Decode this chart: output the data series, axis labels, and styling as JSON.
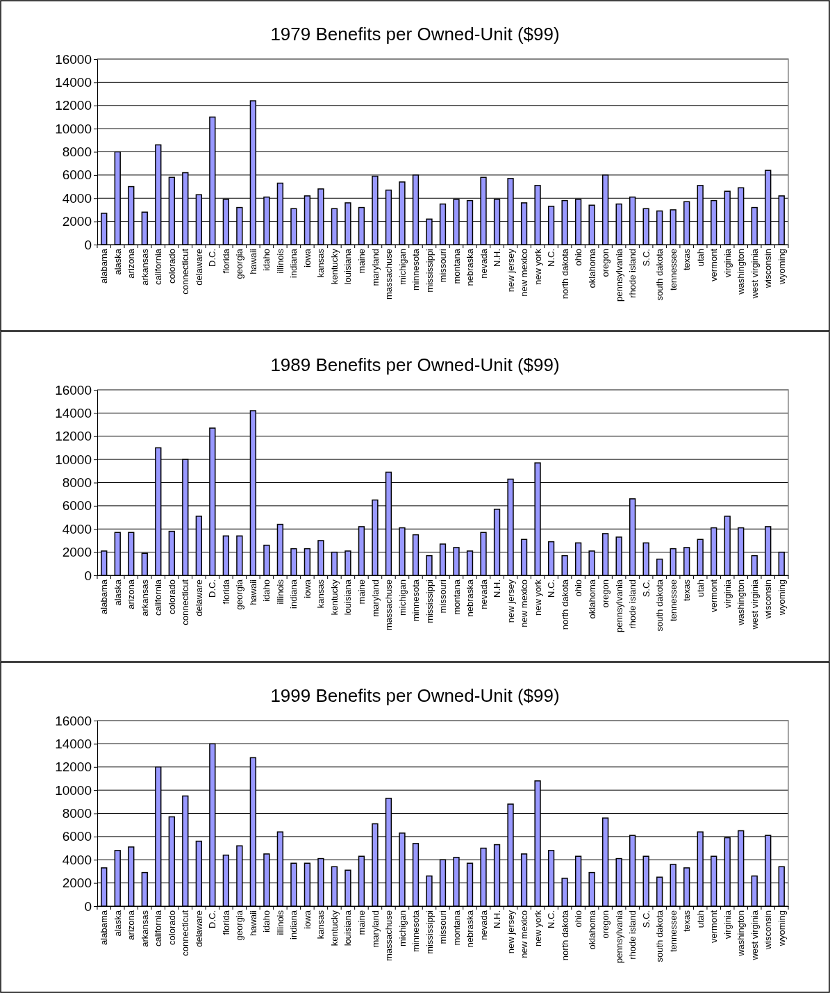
{
  "chart_data": [
    {
      "type": "bar",
      "title": "1979 Benefits per Owned-Unit ($99)",
      "categories": [
        "alabama",
        "alaska",
        "arizona",
        "arkansas",
        "california",
        "colorado",
        "connecticut",
        "delaware",
        "D.C.",
        "florida",
        "georgia",
        "hawaii",
        "idaho",
        "illinois",
        "indiana",
        "iowa",
        "kansas",
        "kentucky",
        "louisiana",
        "maine",
        "maryland",
        "massachuse",
        "michigan",
        "minnesota",
        "mississippi",
        "missouri",
        "montana",
        "nebraska",
        "nevada",
        "N.H.",
        "new jersey",
        "new mexico",
        "new york",
        "N.C.",
        "north dakota",
        "ohio",
        "oklahoma",
        "oregon",
        "pennsylvania",
        "rhode island",
        "S.C.",
        "south dakota",
        "tennessee",
        "texas",
        "utah",
        "vermont",
        "virginia",
        "washington",
        "west virginia",
        "wisconsin",
        "wyoming"
      ],
      "values": [
        2700,
        8000,
        5000,
        2800,
        8600,
        5800,
        6200,
        4300,
        11000,
        3900,
        3200,
        12400,
        4100,
        5300,
        3100,
        4200,
        4800,
        3100,
        3600,
        3200,
        5900,
        4700,
        5400,
        6000,
        2200,
        3500,
        3900,
        3800,
        5800,
        3900,
        5700,
        3600,
        5100,
        3300,
        3800,
        3900,
        3400,
        6000,
        3500,
        4100,
        3100,
        2900,
        3000,
        3700,
        5100,
        3800,
        4600,
        4900,
        3200,
        6400,
        4200
      ],
      "color": "#9999ff",
      "ylim": [
        0,
        16000
      ],
      "yticks": [
        0,
        2000,
        4000,
        6000,
        8000,
        10000,
        12000,
        14000,
        16000
      ],
      "grid": "y"
    },
    {
      "type": "bar",
      "title": "1989 Benefits per Owned-Unit ($99)",
      "categories": [
        "alabama",
        "alaska",
        "arizona",
        "arkansas",
        "california",
        "colorado",
        "connecticut",
        "delaware",
        "D.C.",
        "florida",
        "georgia",
        "hawaii",
        "idaho",
        "illinois",
        "indiana",
        "iowa",
        "kansas",
        "kentucky",
        "louisiana",
        "maine",
        "maryland",
        "massachuse",
        "michigan",
        "minnesota",
        "mississippi",
        "missouri",
        "montana",
        "nebraska",
        "nevada",
        "N.H.",
        "new jersey",
        "new mexico",
        "new york",
        "N.C.",
        "north dakota",
        "ohio",
        "oklahoma",
        "oregon",
        "pennsylvania",
        "rhode island",
        "S.C.",
        "south dakota",
        "tennessee",
        "texas",
        "utah",
        "vermont",
        "virginia",
        "washington",
        "west virginia",
        "wisconsin",
        "wyoming"
      ],
      "values": [
        2100,
        3700,
        3700,
        1900,
        11000,
        3800,
        10000,
        5100,
        12700,
        3400,
        3400,
        14200,
        2600,
        4400,
        2300,
        2300,
        3000,
        2000,
        2100,
        4200,
        6500,
        8900,
        4100,
        3500,
        1700,
        2700,
        2400,
        2100,
        3700,
        5700,
        8300,
        3100,
        9700,
        2900,
        1700,
        2800,
        2100,
        3600,
        3300,
        6600,
        2800,
        1400,
        2300,
        2400,
        3100,
        4100,
        5100,
        4100,
        1700,
        4200,
        2000
      ],
      "color": "#9999ff",
      "ylim": [
        0,
        16000
      ],
      "yticks": [
        0,
        2000,
        4000,
        6000,
        8000,
        10000,
        12000,
        14000,
        16000
      ],
      "grid": "y"
    },
    {
      "type": "bar",
      "title": "1999 Benefits per Owned-Unit ($99)",
      "categories": [
        "alabama",
        "alaska",
        "arizona",
        "arkansas",
        "california",
        "colorado",
        "connecticut",
        "delaware",
        "D.C.",
        "florida",
        "georgia",
        "hawaii",
        "idaho",
        "illinois",
        "indiana",
        "iowa",
        "kansas",
        "kentucky",
        "louisiana",
        "maine",
        "maryland",
        "massachuse",
        "michigan",
        "minnesota",
        "mississippi",
        "missouri",
        "montana",
        "nebraska",
        "nevada",
        "N.H.",
        "new jersey",
        "new mexico",
        "new york",
        "N.C.",
        "north dakota",
        "ohio",
        "oklahoma",
        "oregon",
        "pennsylvania",
        "rhode island",
        "S.C.",
        "south dakota",
        "tennessee",
        "texas",
        "utah",
        "vermont",
        "virginia",
        "washington",
        "west virginia",
        "wisconsin",
        "wyoming"
      ],
      "values": [
        3300,
        4800,
        5100,
        2900,
        12000,
        7700,
        9500,
        5600,
        14000,
        4400,
        5200,
        12800,
        4500,
        6400,
        3700,
        3700,
        4100,
        3400,
        3100,
        4300,
        7100,
        9300,
        6300,
        5400,
        2600,
        4000,
        4200,
        3700,
        5000,
        5300,
        8800,
        4500,
        10800,
        4800,
        2400,
        4300,
        2900,
        7600,
        4100,
        6100,
        4300,
        2500,
        3600,
        3300,
        6400,
        4300,
        5900,
        6500,
        2600,
        6100,
        3400
      ],
      "color": "#9999ff",
      "ylim": [
        0,
        16000
      ],
      "yticks": [
        0,
        2000,
        4000,
        6000,
        8000,
        10000,
        12000,
        14000,
        16000
      ],
      "grid": "y"
    }
  ]
}
